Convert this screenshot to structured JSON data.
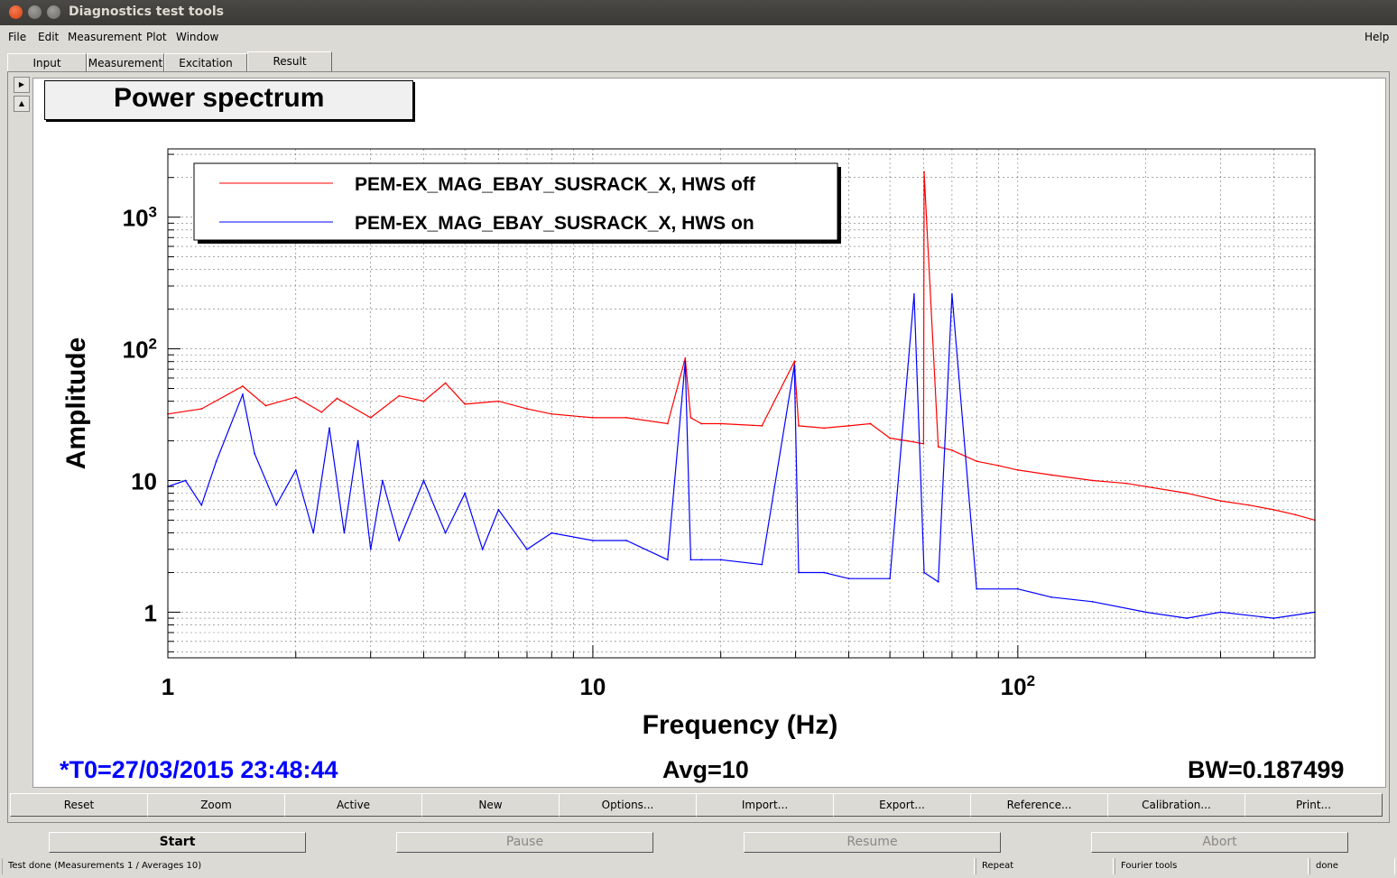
{
  "window": {
    "title": "Diagnostics test tools"
  },
  "menu": {
    "items": [
      "File",
      "Edit",
      "Measurement",
      "Plot",
      "Window"
    ],
    "help": "Help"
  },
  "tabs": [
    "Input",
    "Measurement",
    "Excitation",
    "Result"
  ],
  "active_tab": "Result",
  "plot": {
    "title": "Power spectrum",
    "t0": "*T0=27/03/2015 23:48:44",
    "avg": "Avg=10",
    "bw": "BW=0.187499"
  },
  "chart_data": {
    "type": "line",
    "title": "Power spectrum",
    "xlabel": "Frequency (Hz)",
    "ylabel": "Amplitude",
    "xscale": "log",
    "yscale": "log",
    "xlim": [
      1,
      500
    ],
    "ylim": [
      0.45,
      3300
    ],
    "x_ticks": [
      "1",
      "10",
      "10^2"
    ],
    "y_ticks": [
      "1",
      "10",
      "10^2",
      "10^3"
    ],
    "grid": true,
    "legend_position": "top-left",
    "series": [
      {
        "name": "PEM-EX_MAG_EBAY_SUSRACK_X, HWS off",
        "color": "#ff0000",
        "x": [
          1,
          1.2,
          1.5,
          1.7,
          2,
          2.3,
          2.5,
          3,
          3.5,
          4,
          4.5,
          5,
          6,
          7,
          8,
          10,
          12,
          15,
          16.5,
          17,
          18,
          20,
          25,
          29.8,
          30.5,
          35,
          40,
          45,
          50,
          55,
          60,
          60.2,
          65,
          70,
          80,
          90,
          100,
          120,
          150,
          180,
          200,
          250,
          300,
          350,
          400,
          450,
          500
        ],
        "y": [
          32,
          35,
          52,
          37,
          43,
          33,
          42,
          30,
          44,
          40,
          55,
          38,
          40,
          35,
          32,
          30,
          30,
          27,
          85,
          30,
          27,
          27,
          26,
          80,
          26,
          25,
          26,
          27,
          21,
          20,
          19,
          2200,
          18,
          17,
          14,
          13,
          12,
          11,
          10,
          9.5,
          9,
          8,
          7,
          6.5,
          6,
          5.5,
          5
        ]
      },
      {
        "name": "PEM-EX_MAG_EBAY_SUSRACK_X, HWS on",
        "color": "#0000ff",
        "x": [
          1,
          1.1,
          1.2,
          1.3,
          1.5,
          1.6,
          1.8,
          2,
          2.2,
          2.4,
          2.6,
          2.8,
          3,
          3.2,
          3.5,
          4,
          4.5,
          5,
          5.5,
          6,
          7,
          8,
          10,
          12,
          15,
          16.5,
          17,
          18,
          20,
          25,
          29.8,
          30.5,
          35,
          40,
          50,
          57,
          60.2,
          65,
          70,
          80,
          100,
          120,
          150,
          200,
          250,
          300,
          400,
          500
        ],
        "y": [
          9,
          10,
          6.5,
          14,
          45,
          16,
          6.5,
          12,
          4,
          25,
          4,
          20,
          3,
          10,
          3.5,
          10,
          4,
          8,
          3,
          6,
          3,
          4,
          3.5,
          3.5,
          2.5,
          80,
          2.5,
          2.5,
          2.5,
          2.3,
          75,
          2,
          2,
          1.8,
          1.8,
          260,
          2,
          1.7,
          260,
          1.5,
          1.5,
          1.3,
          1.2,
          1,
          0.9,
          1,
          0.9,
          1
        ]
      }
    ],
    "annotations": [
      "*T0=27/03/2015 23:48:44",
      "Avg=10",
      "BW=0.187499"
    ]
  },
  "buttons": [
    "Reset",
    "Zoom",
    "Active",
    "New",
    "Options...",
    "Import...",
    "Export...",
    "Reference...",
    "Calibration...",
    "Print..."
  ],
  "controls": [
    {
      "label": "Start",
      "enabled": true
    },
    {
      "label": "Pause",
      "enabled": false
    },
    {
      "label": "Resume",
      "enabled": false
    },
    {
      "label": "Abort",
      "enabled": false
    }
  ],
  "status": {
    "message": "Test done (Measurements 1 / Averages 10)",
    "mode": "Repeat",
    "tool": "Fourier tools",
    "state": "done"
  },
  "colors": {
    "off": "#ff0000",
    "on": "#0000ff",
    "annotation": "#0000ff"
  }
}
